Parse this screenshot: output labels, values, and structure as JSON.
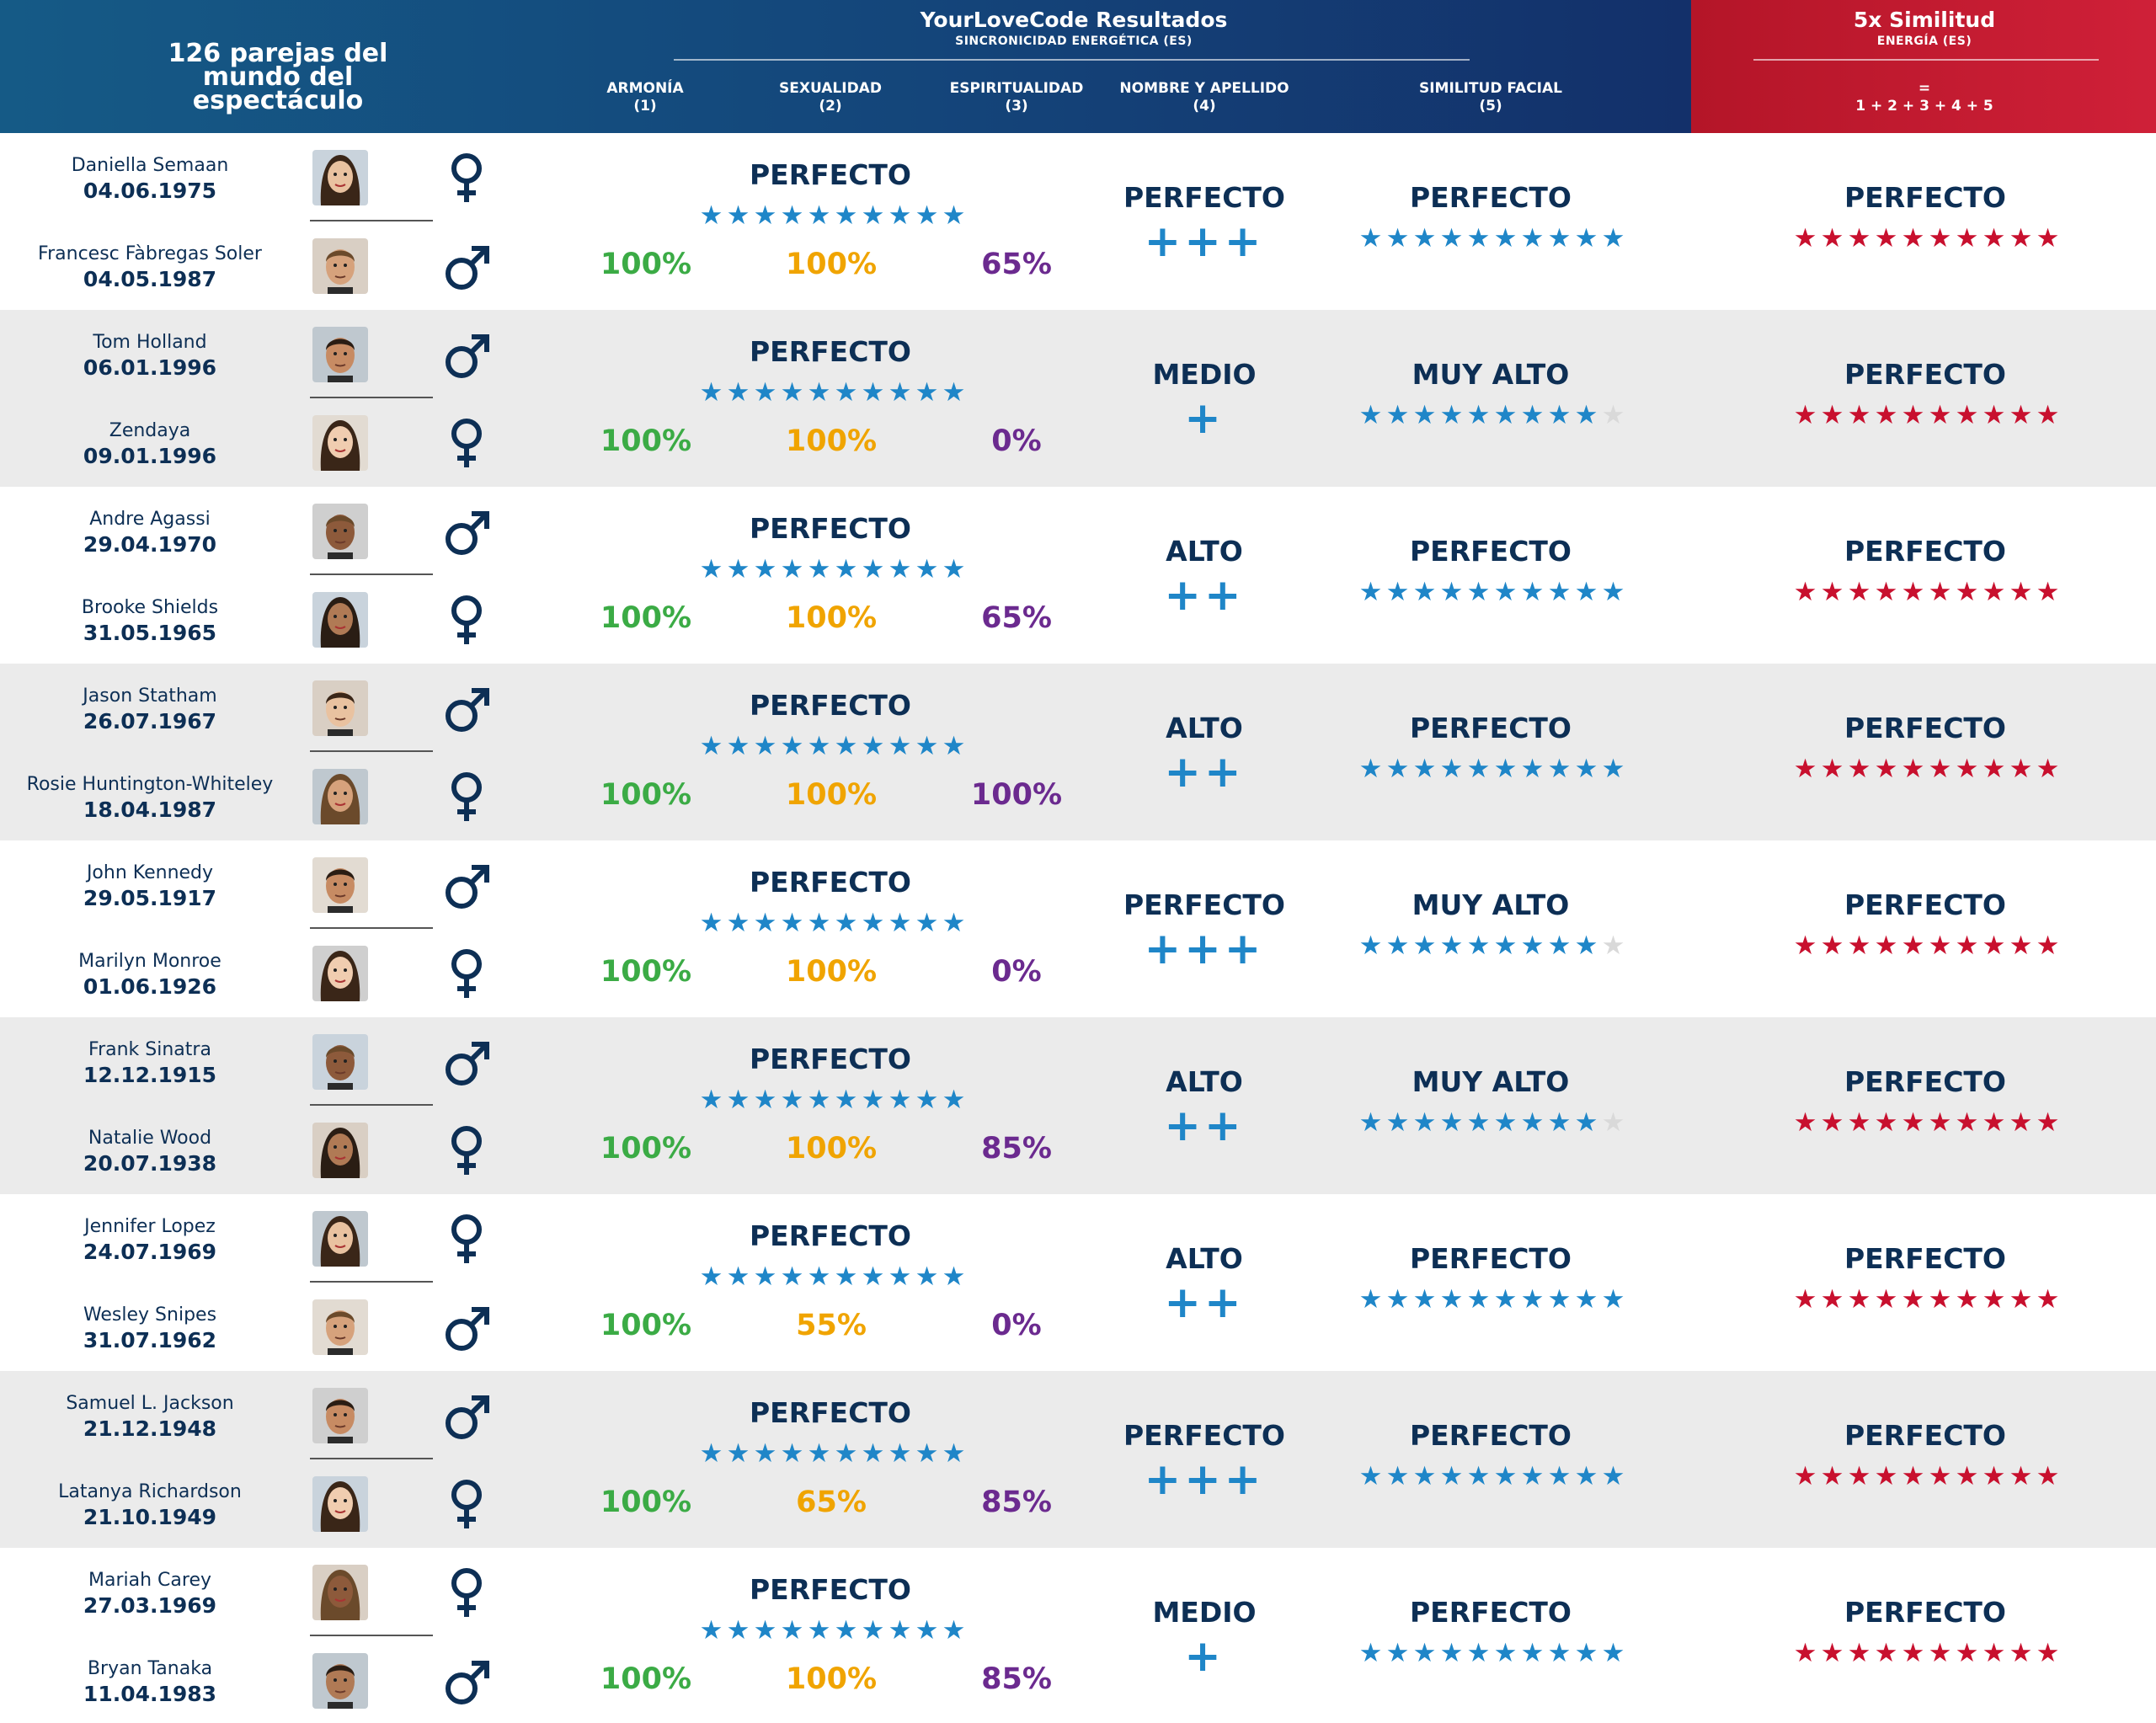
{
  "header": {
    "left_title": "126 parejas del mundo del espectáculo",
    "main_title": "YourLoveCode Resultados",
    "main_subtitle": "SINCRONICIDAD ENERGÉTICA (ES)",
    "columns": [
      {
        "label": "ARMONÍA",
        "num": "(1)"
      },
      {
        "label": "SEXUALIDAD",
        "num": "(2)"
      },
      {
        "label": "ESPIRITUALIDAD",
        "num": "(3)"
      },
      {
        "label": "NOMBRE Y APELLIDO",
        "num": "(4)"
      },
      {
        "label": "SIMILITUD FACIAL",
        "num": "(5)"
      }
    ],
    "total_title": "5x Similitud",
    "total_subtitle": "ENERGÍA (ES)",
    "total_eq": "=",
    "total_formula": "1 + 2 + 3 + 4 + 5"
  },
  "colors": {
    "header_blue": "#14457a",
    "header_red": "#c11a30",
    "armonia_green": "#3bab45",
    "sexualidad_orange": "#f0a400",
    "espiritualidad_purple": "#6b2a8f",
    "star_blue": "#1f86c8",
    "star_red": "#c8102e",
    "star_grey": "#d9d9d9"
  },
  "rows": [
    {
      "p1": {
        "name": "Daniella Semaan",
        "date": "04.06.1975",
        "gender": "female",
        "avatar_icon": "female-face-icon"
      },
      "p2": {
        "name": "Francesc Fàbregas Soler",
        "date": "04.05.1987",
        "gender": "male",
        "avatar_icon": "male-face-icon"
      },
      "sync_label": "PERFECTO",
      "sync_stars": 10,
      "armonia": "100%",
      "sexualidad": "100%",
      "espiritualidad": "65%",
      "name_label": "PERFECTO",
      "name_plus": "+++",
      "facial_label": "PERFECTO",
      "facial_stars": 10,
      "total_label": "PERFECTO",
      "total_stars": 10
    },
    {
      "p1": {
        "name": "Tom Holland",
        "date": "06.01.1996",
        "gender": "male",
        "avatar_icon": "male-face-icon"
      },
      "p2": {
        "name": "Zendaya",
        "date": "09.01.1996",
        "gender": "female",
        "avatar_icon": "female-face-icon"
      },
      "sync_label": "PERFECTO",
      "sync_stars": 10,
      "armonia": "100%",
      "sexualidad": "100%",
      "espiritualidad": "0%",
      "name_label": "MEDIO",
      "name_plus": "+",
      "facial_label": "MUY ALTO",
      "facial_stars": 9,
      "total_label": "PERFECTO",
      "total_stars": 10
    },
    {
      "p1": {
        "name": "Andre Agassi",
        "date": "29.04.1970",
        "gender": "male",
        "avatar_icon": "male-face-icon"
      },
      "p2": {
        "name": "Brooke Shields",
        "date": "31.05.1965",
        "gender": "female",
        "avatar_icon": "female-face-icon"
      },
      "sync_label": "PERFECTO",
      "sync_stars": 10,
      "armonia": "100%",
      "sexualidad": "100%",
      "espiritualidad": "65%",
      "name_label": "ALTO",
      "name_plus": "++",
      "facial_label": "PERFECTO",
      "facial_stars": 10,
      "total_label": "PERFECTO",
      "total_stars": 10
    },
    {
      "p1": {
        "name": "Jason Statham",
        "date": "26.07.1967",
        "gender": "male",
        "avatar_icon": "male-face-icon"
      },
      "p2": {
        "name": "Rosie Huntington-Whiteley",
        "date": "18.04.1987",
        "gender": "female",
        "avatar_icon": "female-face-icon"
      },
      "sync_label": "PERFECTO",
      "sync_stars": 10,
      "armonia": "100%",
      "sexualidad": "100%",
      "espiritualidad": "100%",
      "name_label": "ALTO",
      "name_plus": "++",
      "facial_label": "PERFECTO",
      "facial_stars": 10,
      "total_label": "PERFECTO",
      "total_stars": 10
    },
    {
      "p1": {
        "name": "John Kennedy",
        "date": "29.05.1917",
        "gender": "male",
        "avatar_icon": "male-face-icon"
      },
      "p2": {
        "name": "Marilyn Monroe",
        "date": "01.06.1926",
        "gender": "female",
        "avatar_icon": "female-face-icon"
      },
      "sync_label": "PERFECTO",
      "sync_stars": 10,
      "armonia": "100%",
      "sexualidad": "100%",
      "espiritualidad": "0%",
      "name_label": "PERFECTO",
      "name_plus": "+++",
      "facial_label": "MUY ALTO",
      "facial_stars": 9,
      "total_label": "PERFECTO",
      "total_stars": 10
    },
    {
      "p1": {
        "name": "Frank Sinatra",
        "date": "12.12.1915",
        "gender": "male",
        "avatar_icon": "male-face-icon"
      },
      "p2": {
        "name": "Natalie Wood",
        "date": "20.07.1938",
        "gender": "female",
        "avatar_icon": "female-face-icon"
      },
      "sync_label": "PERFECTO",
      "sync_stars": 10,
      "armonia": "100%",
      "sexualidad": "100%",
      "espiritualidad": "85%",
      "name_label": "ALTO",
      "name_plus": "++",
      "facial_label": "MUY ALTO",
      "facial_stars": 9,
      "total_label": "PERFECTO",
      "total_stars": 10
    },
    {
      "p1": {
        "name": "Jennifer Lopez",
        "date": "24.07.1969",
        "gender": "female",
        "avatar_icon": "female-face-icon"
      },
      "p2": {
        "name": "Wesley Snipes",
        "date": "31.07.1962",
        "gender": "male",
        "avatar_icon": "male-face-icon"
      },
      "sync_label": "PERFECTO",
      "sync_stars": 10,
      "armonia": "100%",
      "sexualidad": "55%",
      "espiritualidad": "0%",
      "name_label": "ALTO",
      "name_plus": "++",
      "facial_label": "PERFECTO",
      "facial_stars": 10,
      "total_label": "PERFECTO",
      "total_stars": 10
    },
    {
      "p1": {
        "name": "Samuel L. Jackson",
        "date": "21.12.1948",
        "gender": "male",
        "avatar_icon": "male-face-icon"
      },
      "p2": {
        "name": "Latanya Richardson",
        "date": "21.10.1949",
        "gender": "female",
        "avatar_icon": "female-face-icon"
      },
      "sync_label": "PERFECTO",
      "sync_stars": 10,
      "armonia": "100%",
      "sexualidad": "65%",
      "espiritualidad": "85%",
      "name_label": "PERFECTO",
      "name_plus": "+++",
      "facial_label": "PERFECTO",
      "facial_stars": 10,
      "total_label": "PERFECTO",
      "total_stars": 10
    },
    {
      "p1": {
        "name": "Mariah Carey",
        "date": "27.03.1969",
        "gender": "female",
        "avatar_icon": "female-face-icon"
      },
      "p2": {
        "name": "Bryan Tanaka",
        "date": "11.04.1983",
        "gender": "male",
        "avatar_icon": "male-face-icon"
      },
      "sync_label": "PERFECTO",
      "sync_stars": 10,
      "armonia": "100%",
      "sexualidad": "100%",
      "espiritualidad": "85%",
      "name_label": "MEDIO",
      "name_plus": "+",
      "facial_label": "PERFECTO",
      "facial_stars": 10,
      "total_label": "PERFECTO",
      "total_stars": 10
    }
  ]
}
